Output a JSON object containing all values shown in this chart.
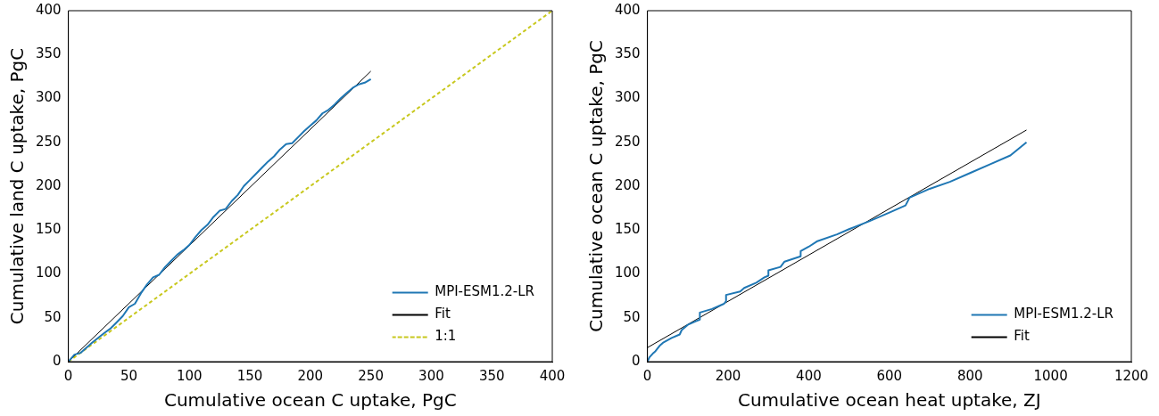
{
  "chart_data": [
    {
      "type": "line",
      "xlabel": "Cumulative ocean C uptake, PgC",
      "ylabel": "Cumulative land C uptake, PgC",
      "xlim": [
        0,
        400
      ],
      "ylim": [
        0,
        400
      ],
      "xticks": [
        0,
        50,
        100,
        150,
        200,
        250,
        300,
        350,
        400
      ],
      "yticks": [
        0,
        50,
        100,
        150,
        200,
        250,
        300,
        350,
        400
      ],
      "grid": false,
      "legend": "bottom right",
      "series": [
        {
          "name": "MPI-ESM1.2-LR",
          "color": "#1f77b4",
          "line_style": "solid",
          "x": [
            0,
            5,
            10,
            20,
            30,
            35,
            40,
            45,
            50,
            55,
            60,
            65,
            70,
            75,
            80,
            85,
            90,
            95,
            100,
            105,
            110,
            115,
            120,
            125,
            130,
            135,
            140,
            145,
            150,
            155,
            160,
            165,
            170,
            175,
            180,
            185,
            190,
            195,
            200,
            205,
            210,
            215,
            220,
            225,
            230,
            235,
            240,
            245,
            250
          ],
          "values": [
            0,
            8,
            10,
            22,
            33,
            38,
            45,
            52,
            62,
            66,
            78,
            88,
            96,
            99,
            108,
            115,
            122,
            127,
            133,
            142,
            150,
            156,
            165,
            172,
            174,
            183,
            190,
            200,
            207,
            214,
            221,
            228,
            234,
            242,
            248,
            249,
            256,
            263,
            269,
            275,
            283,
            287,
            293,
            300,
            306,
            312,
            316,
            318,
            322
          ]
        },
        {
          "name": "Fit",
          "color": "#000000",
          "line_style": "solid",
          "x": [
            0,
            250
          ],
          "values": [
            0,
            331
          ]
        },
        {
          "name": "1:1",
          "color": "#c8c81e",
          "line_style": "dashed",
          "x": [
            0,
            400
          ],
          "values": [
            0,
            400
          ]
        }
      ]
    },
    {
      "type": "line",
      "xlabel": "Cumulative ocean heat uptake, ZJ",
      "ylabel": "Cumulative ocean C uptake, PgC",
      "xlim": [
        0,
        1200
      ],
      "ylim": [
        0,
        400
      ],
      "xticks": [
        0,
        200,
        400,
        600,
        800,
        1000,
        1200
      ],
      "yticks": [
        0,
        50,
        100,
        150,
        200,
        250,
        300,
        350,
        400
      ],
      "grid": false,
      "legend": "bottom right",
      "series": [
        {
          "name": "MPI-ESM1.2-LR",
          "color": "#1f77b4",
          "line_style": "solid",
          "x": [
            0,
            5,
            15,
            20,
            30,
            40,
            60,
            80,
            85,
            100,
            120,
            130,
            130,
            160,
            190,
            195,
            195,
            230,
            240,
            270,
            290,
            300,
            300,
            330,
            340,
            380,
            380,
            400,
            420,
            470,
            500,
            550,
            600,
            640,
            650,
            700,
            750,
            800,
            850,
            900,
            940
          ],
          "values": [
            0,
            5,
            10,
            12,
            18,
            22,
            27,
            31,
            36,
            42,
            46,
            48,
            56,
            60,
            66,
            69,
            76,
            80,
            84,
            90,
            96,
            98,
            104,
            108,
            114,
            120,
            126,
            131,
            137,
            145,
            151,
            160,
            170,
            178,
            187,
            197,
            205,
            215,
            225,
            235,
            250
          ]
        },
        {
          "name": "Fit",
          "color": "#000000",
          "line_style": "solid",
          "x": [
            0,
            940
          ],
          "values": [
            16,
            264
          ]
        }
      ]
    }
  ]
}
